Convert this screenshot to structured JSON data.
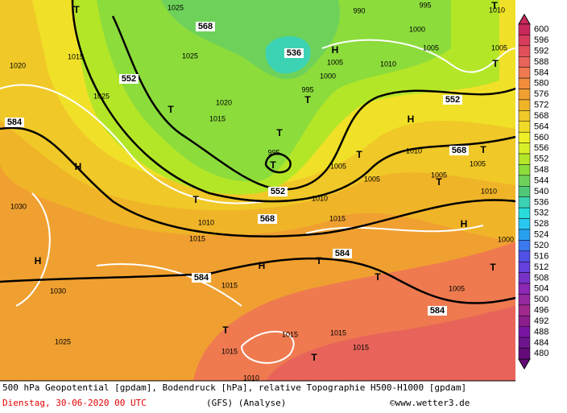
{
  "map": {
    "height_labels": [
      "568",
      "536",
      "552",
      "552",
      "584",
      "568",
      "552",
      "568",
      "584",
      "584",
      "584"
    ],
    "pressure_labels": [
      "1025",
      "990",
      "995",
      "1010",
      "1015",
      "1025",
      "1020",
      "1000",
      "1005",
      "1005",
      "1005",
      "1010",
      "1000",
      "995",
      "1025",
      "1020",
      "1015",
      "995",
      "1010",
      "1005",
      "1005",
      "1005",
      "1005",
      "1010",
      "1010",
      "1030",
      "1010",
      "1015",
      "1015",
      "1000",
      "1015",
      "1030",
      "1005",
      "1015",
      "1015",
      "1015",
      "1025",
      "1015",
      "1010"
    ],
    "centers": [
      "T",
      "T",
      "H",
      "T",
      "T",
      "H",
      "T",
      "T",
      "T",
      "T",
      "H",
      "T",
      "T",
      "H",
      "H",
      "H",
      "T",
      "T",
      "T",
      "T",
      "T",
      "T"
    ]
  },
  "colorbar": {
    "values": [
      600,
      596,
      592,
      588,
      584,
      580,
      576,
      572,
      568,
      564,
      560,
      556,
      552,
      548,
      544,
      540,
      536,
      532,
      528,
      524,
      520,
      516,
      512,
      508,
      504,
      500,
      496,
      492,
      488,
      484,
      480
    ],
    "colors": [
      "#c8285a",
      "#d83c5c",
      "#e0505a",
      "#e8645a",
      "#ef7a50",
      "#f08c3c",
      "#f0a030",
      "#f0b428",
      "#f0c828",
      "#f0dc28",
      "#f0f028",
      "#d8f028",
      "#b4e628",
      "#8cdc3c",
      "#6ed25a",
      "#50c878",
      "#3cd2b4",
      "#28dcdc",
      "#28c8f0",
      "#28a0f0",
      "#3c78f0",
      "#5050e6",
      "#6440dc",
      "#7832c8",
      "#8c28b4",
      "#9628a0",
      "#a0288c",
      "#8c1e8c",
      "#7814a0",
      "#6e148c",
      "#640a78"
    ]
  },
  "footer": {
    "line1": "500 hPa Geopotential [gpdam], Bodendruck [hPa], relative Topographie H500-H1000 [gpdam]",
    "date": "Dienstag, 30-06-2020  00 UTC",
    "model": "(GFS)  (Analyse)",
    "copyright": "©www.wetter3.de"
  }
}
